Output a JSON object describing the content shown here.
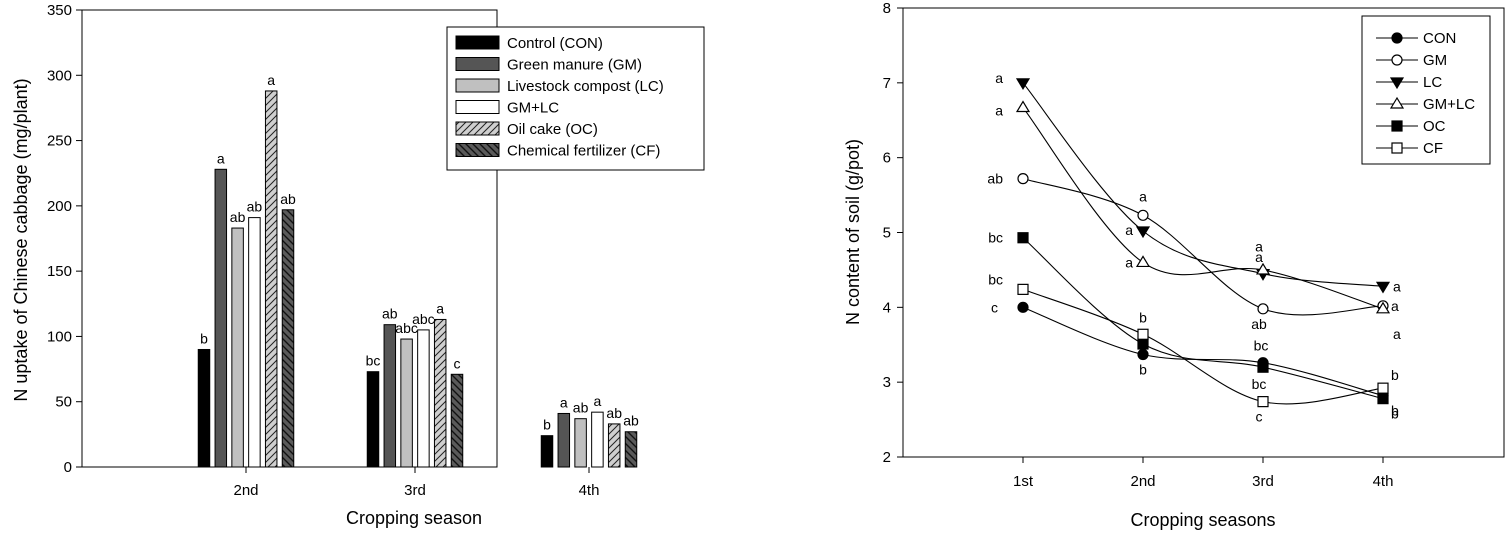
{
  "chart_data": [
    {
      "type": "bar",
      "xlabel": "Cropping season",
      "ylabel": "N uptake of Chinese cabbage (mg/plant)",
      "ylim": [
        0,
        350
      ],
      "yticks": [
        "0",
        "50",
        "100",
        "150",
        "200",
        "250",
        "300",
        "350"
      ],
      "categories": [
        "2nd",
        "3rd",
        "4th"
      ],
      "legend_position": "top-right",
      "series": [
        {
          "name": "Control (CON)",
          "values": [
            90,
            73,
            24
          ],
          "labels": [
            "b",
            "bc",
            "b"
          ],
          "fill": "#000000",
          "pattern": "solid"
        },
        {
          "name": "Green manure (GM)",
          "values": [
            228,
            109,
            41
          ],
          "labels": [
            "a",
            "ab",
            "a"
          ],
          "fill": "#555555",
          "pattern": "solid"
        },
        {
          "name": "Livestock compost (LC)",
          "values": [
            183,
            98,
            37
          ],
          "labels": [
            "ab",
            "abc",
            "ab"
          ],
          "fill": "#c0c0c0",
          "pattern": "solid"
        },
        {
          "name": "GM+LC",
          "values": [
            191,
            105,
            42
          ],
          "labels": [
            "ab",
            "abc",
            "a"
          ],
          "fill": "#ffffff",
          "pattern": "solid"
        },
        {
          "name": "Oil cake (OC)",
          "values": [
            288,
            113,
            33
          ],
          "labels": [
            "a",
            "a",
            "ab"
          ],
          "fill": "#c8c8c8",
          "pattern": "hatch-light"
        },
        {
          "name": "Chemical fertilizer (CF)",
          "values": [
            197,
            71,
            27
          ],
          "labels": [
            "ab",
            "c",
            "ab"
          ],
          "fill": "#555555",
          "pattern": "hatch-dark"
        }
      ]
    },
    {
      "type": "line",
      "xlabel": "Cropping seasons",
      "ylabel": "N content of soil (g/pot)",
      "ylim": [
        2,
        8
      ],
      "yticks": [
        "2",
        "3",
        "4",
        "5",
        "6",
        "7",
        "8"
      ],
      "categories": [
        "1st",
        "2nd",
        "3rd",
        "4th"
      ],
      "legend_position": "top-right",
      "series": [
        {
          "name": "CON",
          "values": [
            4.0,
            3.37,
            3.26,
            2.82
          ],
          "labels": [
            "c",
            "b",
            "bc",
            "b"
          ],
          "marker": "circle-filled"
        },
        {
          "name": "GM",
          "values": [
            5.72,
            5.23,
            3.98,
            4.02
          ],
          "labels": [
            "ab",
            "a",
            "ab",
            "a"
          ],
          "marker": "circle-open"
        },
        {
          "name": "LC",
          "values": [
            7.0,
            5.02,
            4.45,
            4.28
          ],
          "labels": [
            "a",
            "a",
            "a",
            "a"
          ],
          "marker": "triangle-down-filled"
        },
        {
          "name": "GM+LC",
          "values": [
            6.67,
            4.6,
            4.5,
            3.98
          ],
          "labels": [
            "a",
            "a",
            "a",
            "a"
          ],
          "marker": "triangle-up-open"
        },
        {
          "name": "OC",
          "values": [
            4.93,
            3.51,
            3.2,
            2.78
          ],
          "labels": [
            "bc",
            "b",
            "bc",
            "b"
          ],
          "marker": "square-filled"
        },
        {
          "name": "CF",
          "values": [
            4.24,
            3.64,
            2.74,
            2.92
          ],
          "labels": [
            "bc",
            "b",
            "c",
            "b"
          ],
          "marker": "square-open"
        }
      ]
    }
  ]
}
